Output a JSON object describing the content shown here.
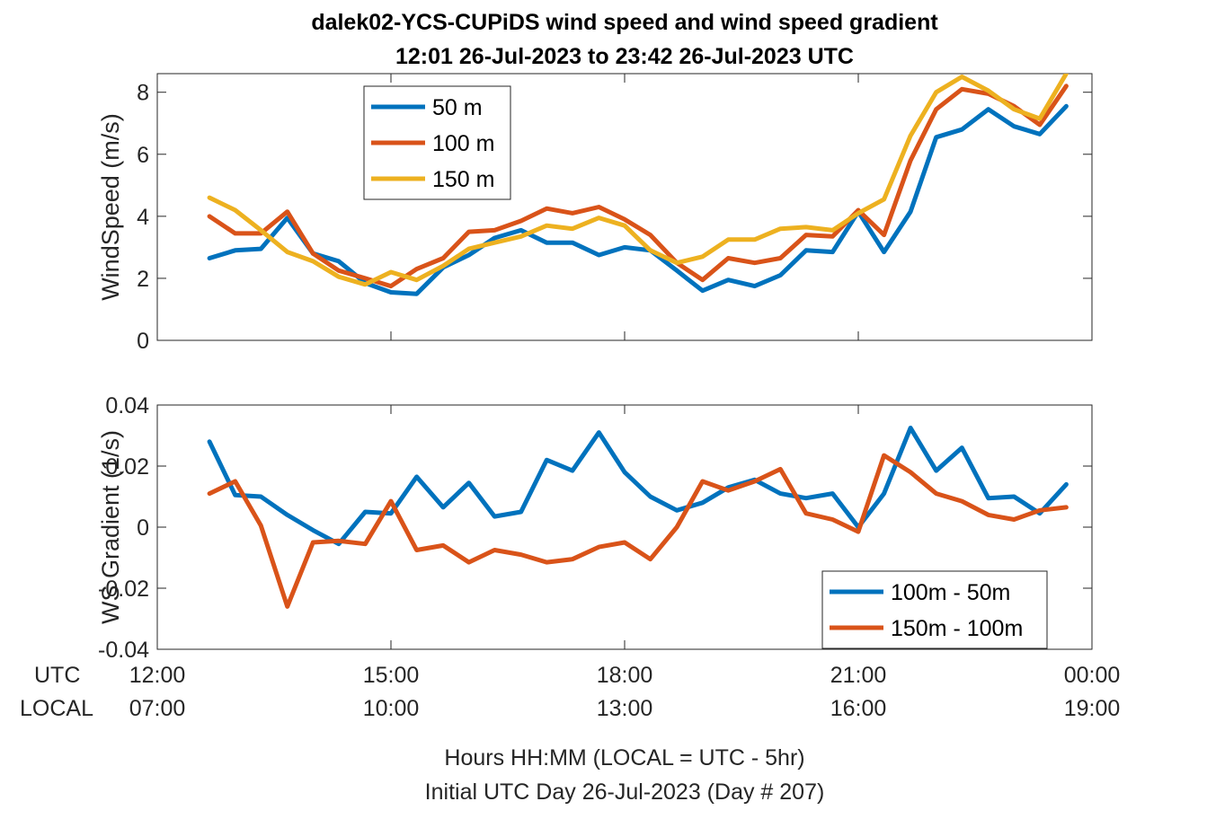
{
  "title_line1": "dalek02-YCS-CUPiDS  wind speed and wind speed gradient",
  "title_line2": "12:01 26-Jul-2023 to 23:42 26-Jul-2023  UTC",
  "xlabel_line1": "Hours HH:MM  (LOCAL = UTC - 5hr)",
  "xlabel_line2": "Initial UTC Day 26-Jul-2023 (Day # 207)",
  "row_labels": {
    "utc": "UTC",
    "local": "LOCAL"
  },
  "chart_data": [
    {
      "type": "line",
      "ylabel": "WindSpeed (m/s)",
      "xlim_hours": [
        12,
        24
      ],
      "ylim": [
        0,
        8.6
      ],
      "yticks": [
        0,
        2,
        4,
        6,
        8
      ],
      "ytick_labels": [
        "0",
        "2",
        "4",
        "6",
        "8"
      ],
      "grid": false,
      "legend_position": "top-left",
      "x_hours": [
        12.67,
        13,
        13.33,
        13.67,
        14,
        14.33,
        14.67,
        15,
        15.33,
        15.67,
        16,
        16.33,
        16.67,
        17,
        17.33,
        17.67,
        18,
        18.33,
        18.67,
        19,
        19.33,
        19.67,
        20,
        20.33,
        20.67,
        21,
        21.33,
        21.67,
        22,
        22.33,
        22.67,
        23,
        23.33,
        23.67
      ],
      "series": [
        {
          "name": "50 m",
          "color": "#0072BD",
          "values": [
            2.65,
            2.9,
            2.95,
            3.95,
            2.8,
            2.55,
            1.85,
            1.55,
            1.5,
            2.35,
            2.75,
            3.3,
            3.55,
            3.15,
            3.15,
            2.75,
            3.0,
            2.9,
            2.25,
            1.6,
            1.95,
            1.75,
            2.1,
            2.9,
            2.85,
            4.15,
            2.85,
            4.15,
            6.55,
            6.8,
            7.45,
            6.9,
            6.65,
            7.55
          ]
        },
        {
          "name": "100 m",
          "color": "#D95319",
          "values": [
            4.0,
            3.45,
            3.45,
            4.15,
            2.8,
            2.25,
            2.0,
            1.75,
            2.3,
            2.65,
            3.5,
            3.55,
            3.85,
            4.25,
            4.1,
            4.3,
            3.9,
            3.4,
            2.5,
            1.95,
            2.65,
            2.5,
            2.65,
            3.4,
            3.35,
            4.2,
            3.4,
            5.8,
            7.45,
            8.1,
            7.95,
            7.55,
            6.95,
            8.2
          ]
        },
        {
          "name": "150 m",
          "color": "#EDB120",
          "values": [
            4.6,
            4.2,
            3.55,
            2.85,
            2.55,
            2.05,
            1.8,
            2.2,
            1.95,
            2.4,
            2.95,
            3.15,
            3.35,
            3.7,
            3.6,
            3.95,
            3.7,
            2.9,
            2.5,
            2.7,
            3.25,
            3.25,
            3.6,
            3.65,
            3.55,
            4.1,
            4.55,
            6.6,
            8.0,
            8.5,
            8.05,
            7.45,
            7.15,
            8.6
          ]
        }
      ]
    },
    {
      "type": "line",
      "ylabel": "WS Gradient (1/s)",
      "xlim_hours": [
        12,
        24
      ],
      "ylim": [
        -0.04,
        0.04
      ],
      "yticks": [
        -0.04,
        -0.02,
        0,
        0.02,
        0.04
      ],
      "ytick_labels": [
        "-0.04",
        "-0.02",
        "0",
        "0.02",
        "0.04"
      ],
      "xticks_hours": [
        12,
        15,
        18,
        21,
        24
      ],
      "xtick_labels_utc": [
        "12:00",
        "15:00",
        "18:00",
        "21:00",
        "00:00"
      ],
      "xtick_labels_local": [
        "07:00",
        "10:00",
        "13:00",
        "16:00",
        "19:00"
      ],
      "grid": false,
      "legend_position": "bottom-right",
      "x_hours": [
        12.67,
        13,
        13.33,
        13.67,
        14,
        14.33,
        14.67,
        15,
        15.33,
        15.67,
        16,
        16.33,
        16.67,
        17,
        17.33,
        17.67,
        18,
        18.33,
        18.67,
        19,
        19.33,
        19.67,
        20,
        20.33,
        20.67,
        21,
        21.33,
        21.67,
        22,
        22.33,
        22.67,
        23,
        23.33,
        23.67
      ],
      "series": [
        {
          "name": "100m - 50m",
          "color": "#0072BD",
          "values": [
            0.028,
            0.0105,
            0.01,
            0.004,
            -0.001,
            -0.0055,
            0.005,
            0.0045,
            0.0165,
            0.0065,
            0.0145,
            0.0035,
            0.005,
            0.022,
            0.0185,
            0.031,
            0.018,
            0.01,
            0.0055,
            0.008,
            0.013,
            0.0155,
            0.011,
            0.0095,
            0.011,
            0.0,
            0.011,
            0.0325,
            0.0185,
            0.026,
            0.0095,
            0.01,
            0.0045,
            0.014
          ]
        },
        {
          "name": "150m - 100m",
          "color": "#D95319",
          "values": [
            0.011,
            0.015,
            0.0005,
            -0.026,
            -0.005,
            -0.0045,
            -0.0055,
            0.0085,
            -0.0075,
            -0.006,
            -0.0115,
            -0.0075,
            -0.009,
            -0.0115,
            -0.0105,
            -0.0065,
            -0.005,
            -0.0105,
            0.0,
            0.015,
            0.012,
            0.015,
            0.019,
            0.0045,
            0.0025,
            -0.0015,
            0.0235,
            0.018,
            0.011,
            0.0085,
            0.004,
            0.0025,
            0.0055,
            0.0065
          ]
        }
      ]
    }
  ]
}
